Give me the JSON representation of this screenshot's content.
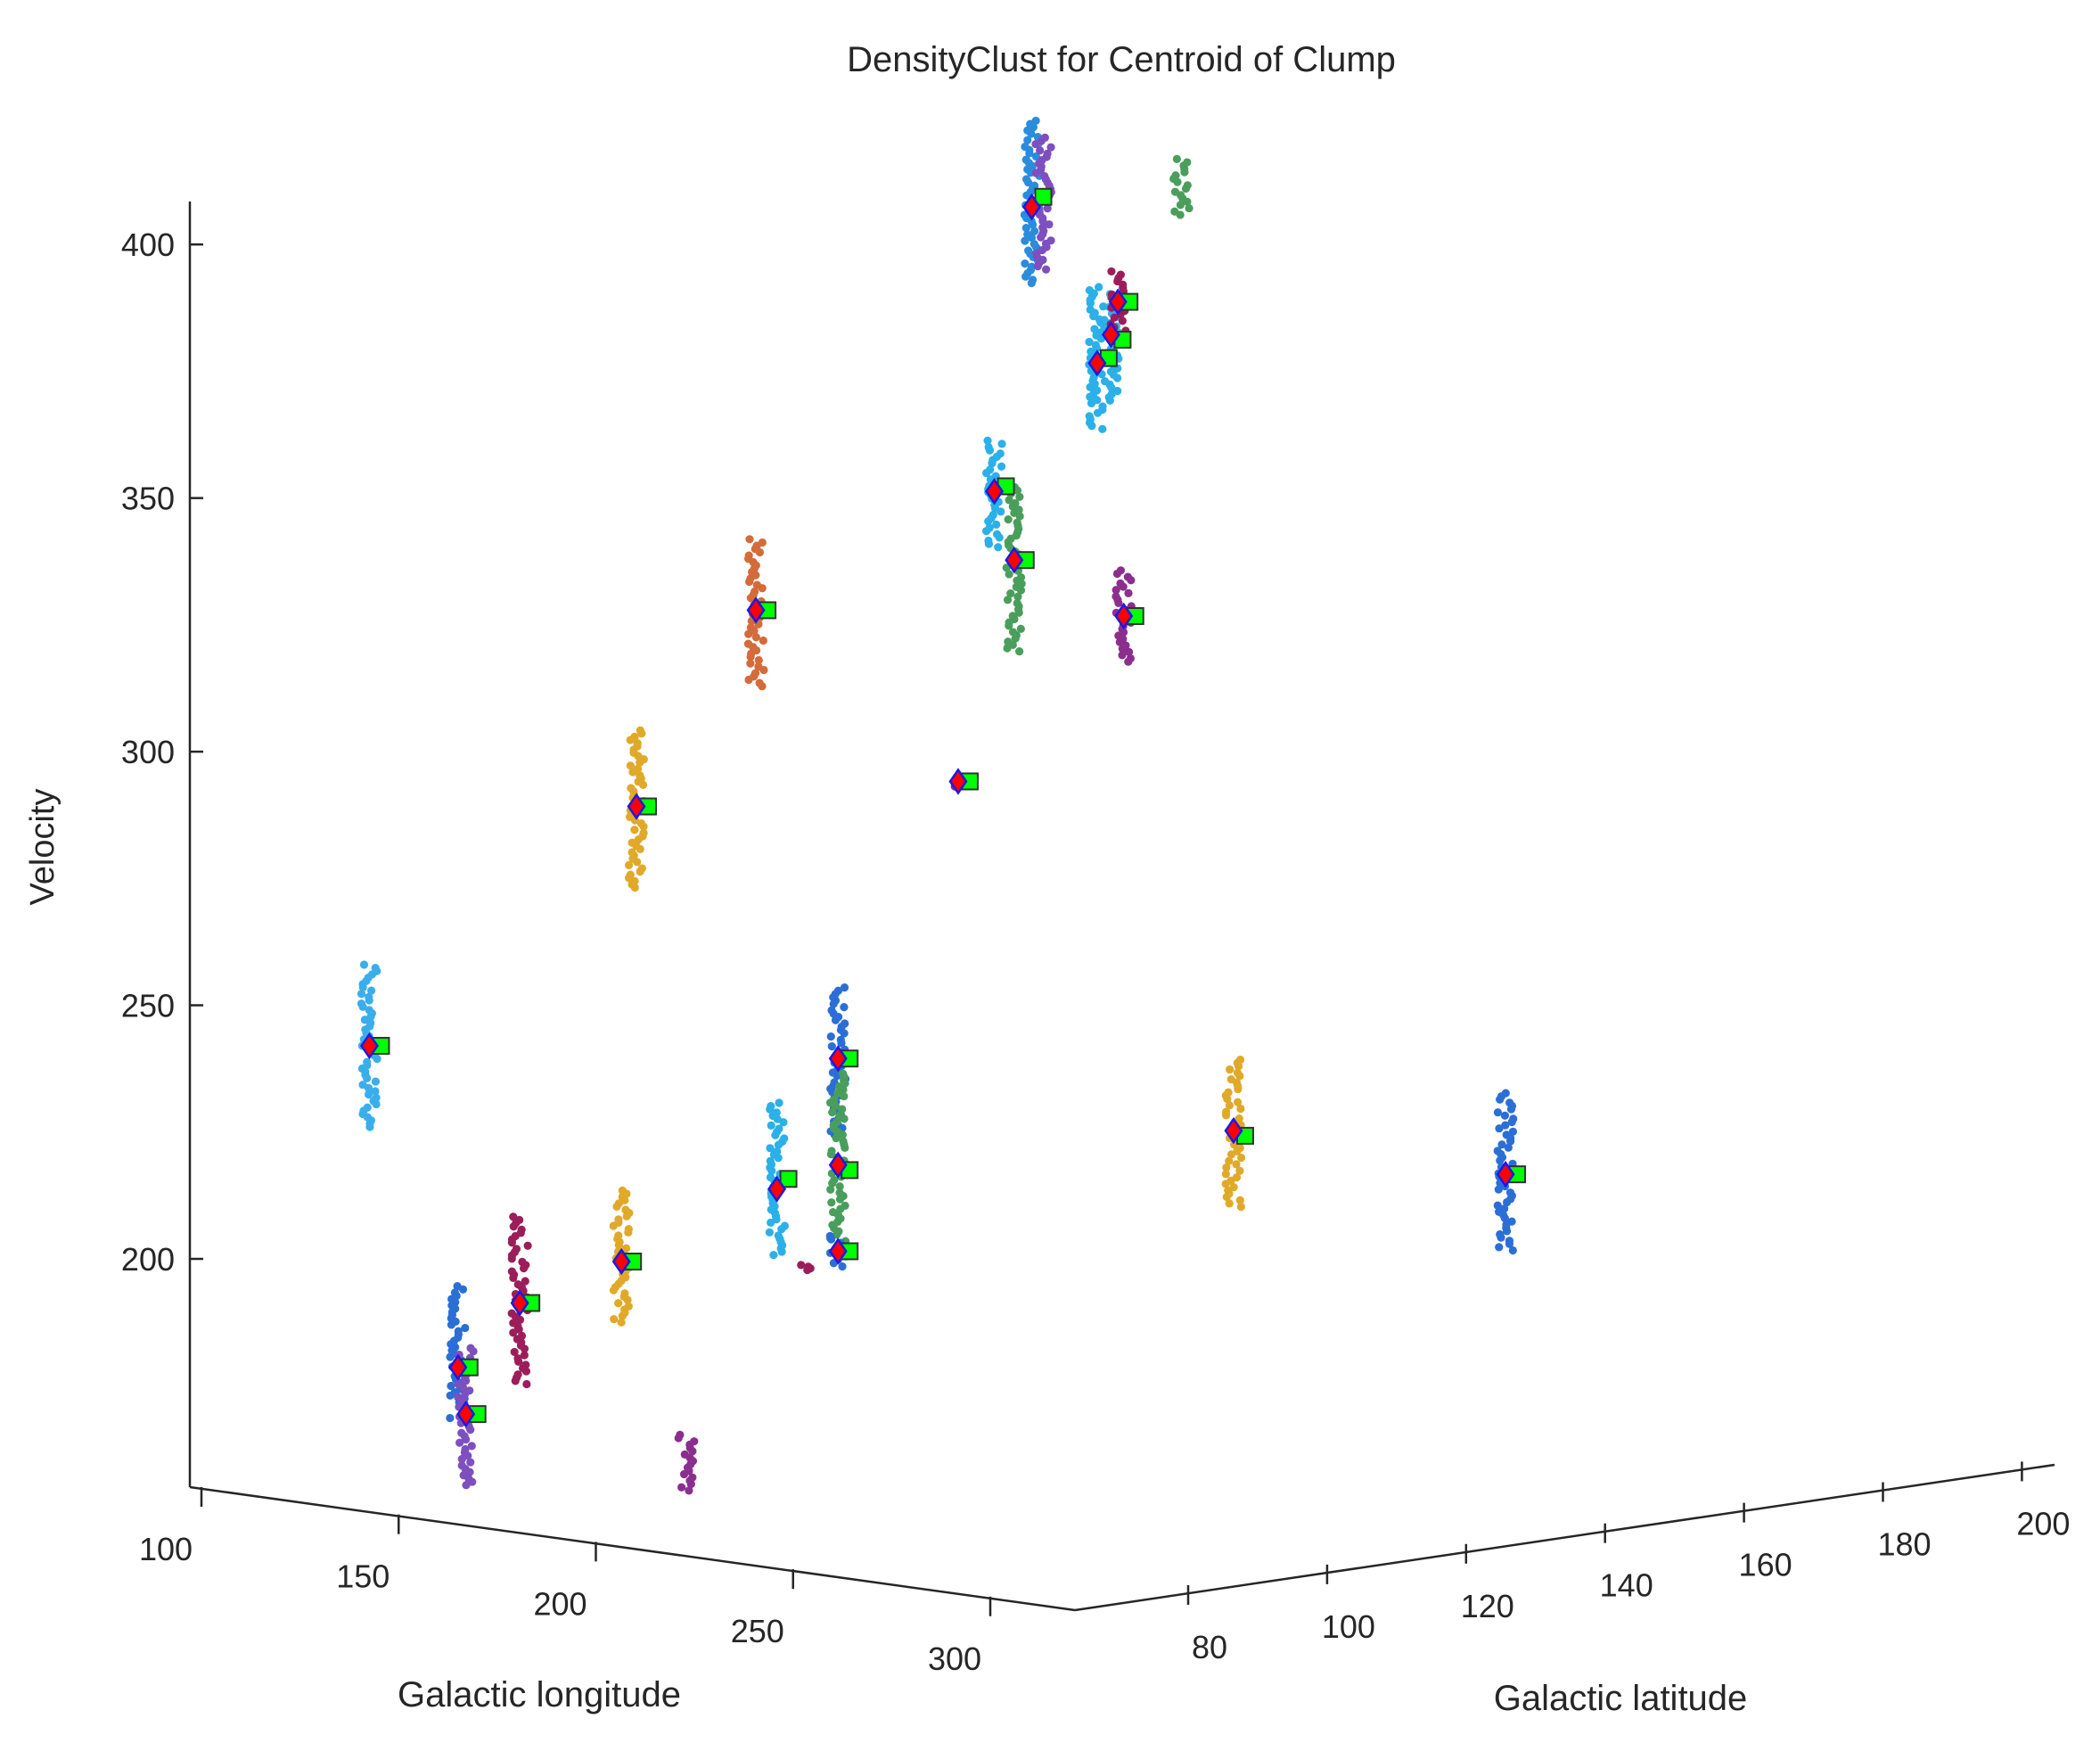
{
  "chart_data": {
    "type": "scatter",
    "title": "DensityClust for Centroid of Clump",
    "xlabel": "Galactic longitude",
    "ylabel": "Galactic latitude",
    "zlabel": "Velocity",
    "xticks": [
      100,
      150,
      200,
      250,
      300
    ],
    "yticks": [
      80,
      100,
      120,
      140,
      160,
      180,
      200
    ],
    "zticks": [
      200,
      250,
      300,
      350,
      400
    ],
    "xlim": [
      100,
      320
    ],
    "ylim": [
      60,
      200
    ],
    "zlim": [
      155,
      410
    ],
    "grid": false,
    "legend": "none",
    "marker_legend": {
      "points": "clump members (small dots, colored by cluster)",
      "diamond_fill": "#ff0000",
      "diamond_stroke": "#1a1ae6",
      "square_fill": "#00ff00",
      "square_stroke": "#333333"
    },
    "clusters": [
      {
        "x": 200,
        "y": 152,
        "z": 395,
        "z_span": [
          379,
          411
        ],
        "color": "#2b8cdb",
        "centroid": 394,
        "square": 396
      },
      {
        "x": 206,
        "y": 152,
        "z": 393,
        "z_span": [
          382,
          408
        ],
        "color": "#7e4fbf"
      },
      {
        "x": 226,
        "y": 166,
        "z": 396,
        "z_span": [
          391,
          402
        ],
        "color": "#4a9e5c"
      },
      {
        "x": 233,
        "y": 152,
        "z": 366,
        "z_span": [
          352,
          380
        ],
        "color": "#2bb0e8",
        "centroid": 365,
        "square": 366
      },
      {
        "x": 240,
        "y": 152,
        "z": 370,
        "z_span": [
          358,
          379
        ],
        "color": "#2bb0e8",
        "centroid": 371,
        "square": 370
      },
      {
        "x": 195,
        "y": 114,
        "z": 322,
        "z_span": [
          307,
          336
        ],
        "color": "#d36b3a",
        "centroid": 322,
        "square": 322
      },
      {
        "x": 170,
        "y": 104,
        "z": 284,
        "z_span": [
          268,
          299
        ],
        "color": "#e0a92a",
        "centroid": 284,
        "square": 284
      },
      {
        "x": 120,
        "y": 80,
        "z": 239,
        "z_span": [
          223,
          255
        ],
        "color": "#3aaeea",
        "centroid": 239,
        "square": 239
      },
      {
        "x": 200,
        "y": 70,
        "z": 182,
        "z_span": [
          172,
          198
        ],
        "color": "#2b6fd6",
        "centroid": 182,
        "square": 182
      },
      {
        "x": 204,
        "y": 70,
        "z": 174,
        "z_span": [
          159,
          186
        ],
        "color": "#7e4fbf",
        "centroid": 173,
        "square": 173
      },
      {
        "x": 210,
        "y": 76,
        "z": 194,
        "z_span": [
          178,
          211
        ],
        "color": "#9b1e5a",
        "centroid": 194,
        "square": 194
      },
      {
        "x": 226,
        "y": 86,
        "z": 201,
        "z_span": [
          189,
          215
        ],
        "color": "#e0a92a",
        "centroid": 201,
        "square": 201
      },
      {
        "x": 255,
        "y": 100,
        "z": 214,
        "z_span": [
          201,
          231
        ],
        "color": "#2bb0e8",
        "centroid": 214,
        "square": 216
      },
      {
        "x": 280,
        "y": 80,
        "z": 166,
        "z_span": [
          160,
          171
        ],
        "color": "#8b2f8f"
      },
      {
        "x": 300,
        "y": 136,
        "z": 384,
        "z_span": [
          377,
          390
        ],
        "color": "#9b1e5a",
        "centroid": 384,
        "square": 384
      },
      {
        "x": 280,
        "y": 124,
        "z": 348,
        "z_span": [
          337,
          358
        ],
        "color": "#2bb0e8",
        "centroid": 348,
        "square": 349
      },
      {
        "x": 290,
        "y": 124,
        "z": 335,
        "z_span": [
          317,
          350
        ],
        "color": "#4a9e5c",
        "centroid": 335,
        "square": 335
      },
      {
        "x": 310,
        "y": 134,
        "z": 323,
        "z_span": [
          314,
          332
        ],
        "color": "#8b2f8f",
        "centroid": 323,
        "square": 323
      },
      {
        "x": 290,
        "y": 116,
        "z": 293,
        "z_span": [
          292,
          294
        ],
        "color": "#8b2f8f",
        "centroid": 293,
        "square": 293
      },
      {
        "x": 300,
        "y": 96,
        "z": 243,
        "z_span": [
          228,
          257
        ],
        "color": "#2b6fd6",
        "centroid": 243,
        "square": 243
      },
      {
        "x": 300,
        "y": 96,
        "z": 222,
        "z_span": [
          207,
          240
        ],
        "color": "#4a9e5c",
        "centroid": 222,
        "square": 221
      },
      {
        "x": 300,
        "y": 96,
        "z": 205,
        "z_span": [
          202,
          208
        ],
        "color": "#2b6fd6",
        "centroid": 205,
        "square": 205
      },
      {
        "x": 298,
        "y": 92,
        "z": 202,
        "z_span": [
          202,
          203
        ],
        "color": "#9b1e5a"
      },
      {
        "x": 316,
        "y": 148,
        "z": 219,
        "z_span": [
          204,
          233
        ],
        "color": "#e0a92a",
        "centroid": 219,
        "square": 218
      },
      {
        "x": 312,
        "y": 188,
        "z": 202,
        "z_span": [
          187,
          218
        ],
        "color": "#2b6fd6",
        "centroid": 202,
        "square": 202
      }
    ]
  }
}
